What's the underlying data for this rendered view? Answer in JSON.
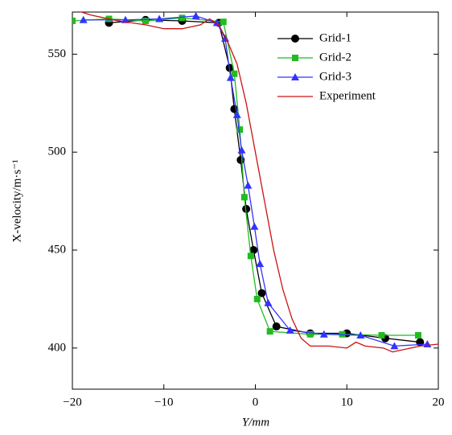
{
  "chart_data": {
    "type": "line",
    "xlabel": "Y/mm",
    "ylabel": "X-velocity/m·s⁻¹",
    "xlim": [
      -20,
      20
    ],
    "ylim": [
      379,
      571.5
    ],
    "xticks": [
      {
        "value": -20,
        "label": "−20"
      },
      {
        "value": -10,
        "label": "−10"
      },
      0,
      10,
      20
    ],
    "yticks": [
      400,
      450,
      500,
      550
    ],
    "legend": "upper right",
    "series": [
      {
        "name": "Grid-1",
        "color": "#000000",
        "marker": "circle",
        "x": [
          -16,
          -12,
          -8,
          -4,
          -2.8,
          -2.3,
          -1.6,
          -1,
          -0.2,
          0.7,
          2.3,
          6,
          10,
          14.2,
          18
        ],
        "values": [
          566,
          567.5,
          567,
          566,
          543,
          522,
          496,
          471,
          450,
          428,
          411,
          407.5,
          407.5,
          405,
          403
        ]
      },
      {
        "name": "Grid-2",
        "color": "#22bb22",
        "marker": "square",
        "x": [
          -20,
          -16,
          -12,
          -8,
          -3.5,
          -2.3,
          -1.7,
          -1.2,
          -0.5,
          0.2,
          1.6,
          6,
          9.5,
          13.8,
          17.8
        ],
        "values": [
          567,
          568,
          567,
          568.5,
          566.5,
          540,
          511.5,
          477,
          447,
          425,
          408.5,
          407,
          407,
          406.5,
          406.5
        ]
      },
      {
        "name": "Grid-3",
        "color": "#3333ff",
        "marker": "triangle",
        "x": [
          -18.8,
          -14.2,
          -10.5,
          -6.5,
          -4.2,
          -3.3,
          -2.7,
          -2,
          -1.5,
          -0.8,
          -0.1,
          0.5,
          1.4,
          3.8,
          7.5,
          11.5,
          15.2,
          18.8
        ],
        "values": [
          567.5,
          567.5,
          568,
          569.5,
          566,
          558,
          538,
          519,
          501,
          483,
          462,
          443,
          423,
          409,
          407,
          406.5,
          401,
          402
        ]
      },
      {
        "name": "Experiment",
        "color": "#cc1111",
        "x": [
          -20,
          -18,
          -15,
          -12,
          -10,
          -8,
          -6,
          -5,
          -4,
          -3,
          -2,
          -1,
          0,
          1,
          2,
          3,
          4,
          5,
          6,
          8,
          10,
          11,
          12,
          14,
          15,
          16,
          18,
          20
        ],
        "values": [
          573,
          570,
          567,
          565,
          563,
          563,
          565,
          568,
          565,
          556,
          545,
          525,
          500,
          475,
          450,
          430,
          415,
          405,
          401,
          401,
          400,
          403,
          401,
          400,
          398,
          399,
          401,
          402
        ]
      }
    ]
  }
}
